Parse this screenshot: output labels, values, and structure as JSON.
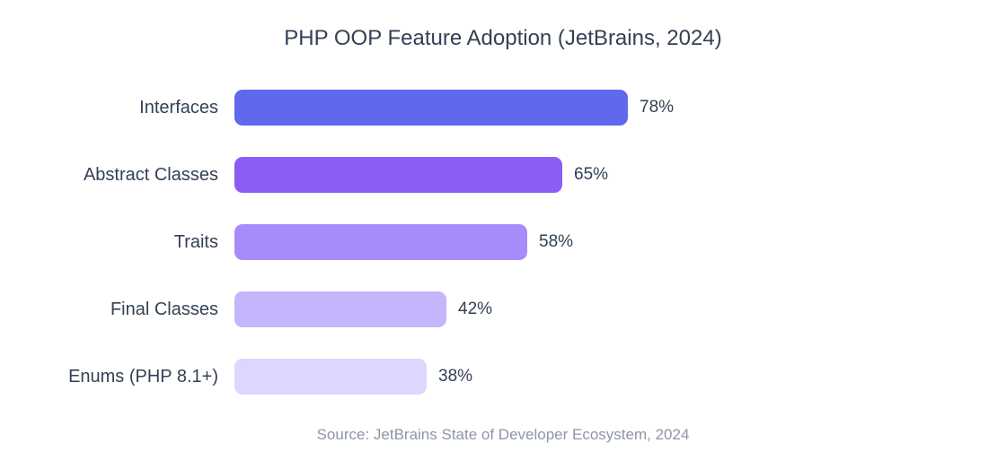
{
  "chart_data": {
    "type": "bar",
    "orientation": "horizontal",
    "title": "PHP OOP Feature Adoption (JetBrains, 2024)",
    "categories": [
      "Interfaces",
      "Abstract Classes",
      "Traits",
      "Final Classes",
      "Enums (PHP 8.1+)"
    ],
    "values": [
      78,
      65,
      58,
      42,
      38
    ],
    "value_labels": [
      "78%",
      "65%",
      "58%",
      "42%",
      "38%"
    ],
    "bar_colors": [
      "#6168EB",
      "#8B5DF6",
      "#A78BFA",
      "#C4B5FD",
      "#DDD6FE"
    ],
    "xlim": [
      0,
      100
    ],
    "grid": false,
    "legend": false,
    "source": "Source: JetBrains State of Developer Ecosystem, 2024"
  },
  "colors": {
    "background": "#FFFFFF",
    "title_text": "#334155",
    "label_text": "#334155",
    "value_text": "#334155",
    "source_text": "#8C96A6"
  }
}
